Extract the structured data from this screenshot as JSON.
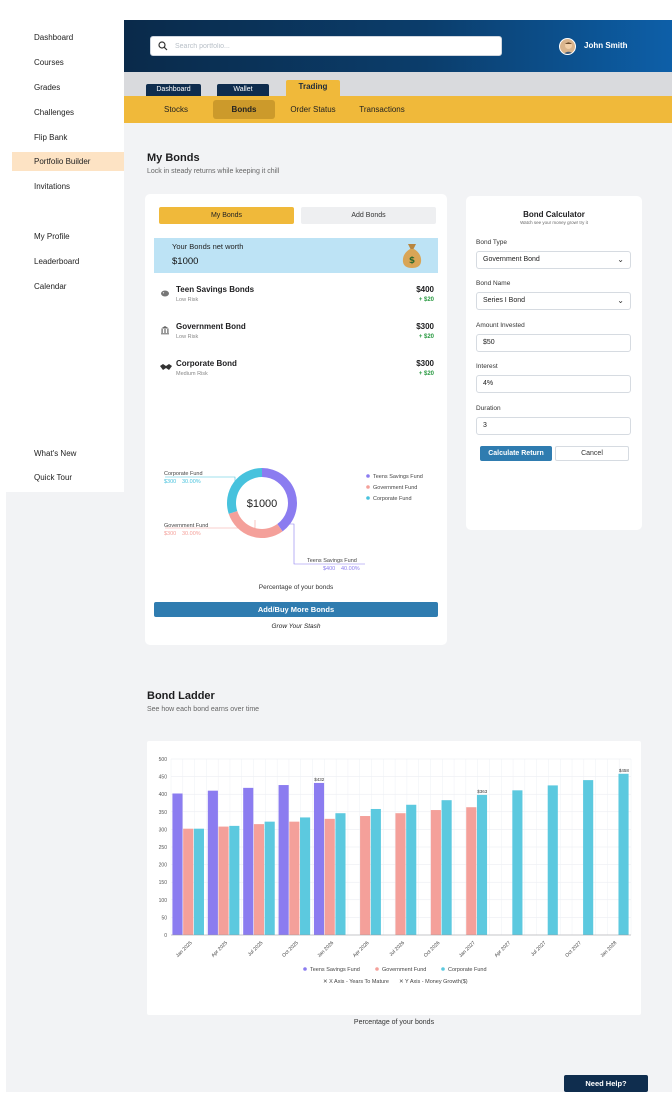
{
  "sidebar": {
    "items": [
      {
        "label": "Dashboard",
        "active": false
      },
      {
        "label": "Courses",
        "active": false
      },
      {
        "label": "Grades",
        "active": false
      },
      {
        "label": "Challenges",
        "active": false
      },
      {
        "label": "Flip Bank",
        "active": false
      },
      {
        "label": "Portfolio Builder",
        "active": true
      },
      {
        "label": "Invitations",
        "active": false
      },
      {
        "label": "My Profile",
        "active": false
      },
      {
        "label": "Leaderboard",
        "active": false
      },
      {
        "label": "Calendar",
        "active": false
      },
      {
        "label": "What's New",
        "active": false
      },
      {
        "label": "Quick Tour",
        "active": false
      }
    ]
  },
  "header": {
    "search_placeholder": "Search portfolio...",
    "user_name": "John Smith",
    "tabs": [
      "Dashboard",
      "Wallet",
      "Trading"
    ],
    "active_tab": "Trading",
    "subtabs": [
      "Stocks",
      "Bonds",
      "Order Status",
      "Transactions"
    ],
    "active_subtab": "Bonds"
  },
  "my_bonds": {
    "title": "My Bonds",
    "subtitle": "Lock in steady returns while keeping it chill",
    "toggle": [
      "My Bonds",
      "Add Bonds"
    ],
    "networth_label": "Your Bonds net worth",
    "networth_value": "$1000",
    "items": [
      {
        "name": "Teen Savings Bonds",
        "risk": "Low Risk",
        "amount": "$400",
        "gain": "+ $20",
        "icon": "piggy-icon"
      },
      {
        "name": "Government Bond",
        "risk": "Low Risk",
        "amount": "$300",
        "gain": "+ $20",
        "icon": "bank-icon"
      },
      {
        "name": "Corporate Bond",
        "risk": "Medium Risk",
        "amount": "$300",
        "gain": "+ $20",
        "icon": "handshake-icon"
      }
    ],
    "donut_center": "$1000",
    "donut_caption": "Percentage of your bonds",
    "add_button": "Add/Buy More Bonds",
    "grow_link": "Grow Your Stash"
  },
  "chart_data": [
    {
      "type": "pie",
      "title": "Percentage of your bonds",
      "center_label": "$1000",
      "labels": [
        "Teens Savings Fund",
        "Government Fund",
        "Corporate Fund"
      ],
      "values": [
        400,
        300,
        300
      ],
      "percents": [
        "40.00%",
        "30.00%",
        "30.00%"
      ],
      "value_labels": [
        "$400",
        "$300",
        "$300"
      ],
      "colors": [
        "#8b7cf0",
        "#f4a09a",
        "#47c2dd"
      ],
      "callouts": {
        "corporate": {
          "name": "Corporate Fund",
          "value": "$300",
          "pct": "30.00%"
        },
        "government": {
          "name": "Government Fund",
          "value": "$300",
          "pct": "30.00%"
        },
        "teens": {
          "name": "Teens Savings Fund",
          "value": "$400",
          "pct": "40.00%"
        }
      }
    },
    {
      "type": "bar",
      "title": "Bond Ladder",
      "caption": "Percentage of your bonds",
      "categories": [
        "Jan 2025",
        "Apr 2025",
        "Jul 2025",
        "Oct 2025",
        "Jan 2026",
        "Apr 2026",
        "Jul 2026",
        "Oct 2026",
        "Jan 2027",
        "Apr 2027",
        "Jul 2027",
        "Oct 2027",
        "Jan 2028"
      ],
      "series": [
        {
          "name": "Teens Savings Fund",
          "color": "#8b7cf0",
          "values": [
            402,
            410,
            418,
            426,
            432,
            null,
            null,
            null,
            null,
            null,
            null,
            null,
            null
          ]
        },
        {
          "name": "Government Fund",
          "color": "#f4a09a",
          "values": [
            302,
            308,
            315,
            322,
            330,
            338,
            346,
            355,
            363,
            null,
            null,
            null,
            null
          ]
        },
        {
          "name": "Corporate Fund",
          "color": "#5cc9df",
          "values": [
            302,
            310,
            322,
            334,
            346,
            358,
            370,
            383,
            398,
            411,
            425,
            440,
            458
          ]
        }
      ],
      "peak_labels": [
        {
          "category": "Jan 2026",
          "text": "$432"
        },
        {
          "category": "Jan 2027",
          "text": "$363"
        },
        {
          "category": "Jan 2028",
          "text": "$458"
        }
      ],
      "yticks": [
        0,
        50,
        100,
        150,
        200,
        250,
        300,
        350,
        400,
        450,
        500
      ],
      "ylim": [
        0,
        500
      ],
      "legend_axes": [
        "X Axis - Years To Mature",
        "Y Axis - Money Growth($)"
      ]
    }
  ],
  "ladder": {
    "title": "Bond Ladder",
    "subtitle": "See how each bond earns over time",
    "caption": "Percentage of your bonds"
  },
  "calculator": {
    "title": "Bond Calculator",
    "subtitle": "Watch see your money grow! try it",
    "fields": [
      {
        "label": "Bond Type",
        "value": "Government Bond",
        "type": "select"
      },
      {
        "label": "Bond Name",
        "value": "Series I Bond",
        "type": "select"
      },
      {
        "label": "Amount Invested",
        "value": "$50",
        "type": "input"
      },
      {
        "label": "Interest",
        "value": "4%",
        "type": "input"
      },
      {
        "label": "Duration",
        "value": "3",
        "type": "input"
      }
    ],
    "calc_button": "Calculate Return",
    "cancel_button": "Cancel"
  },
  "help_button": "Need Help?"
}
